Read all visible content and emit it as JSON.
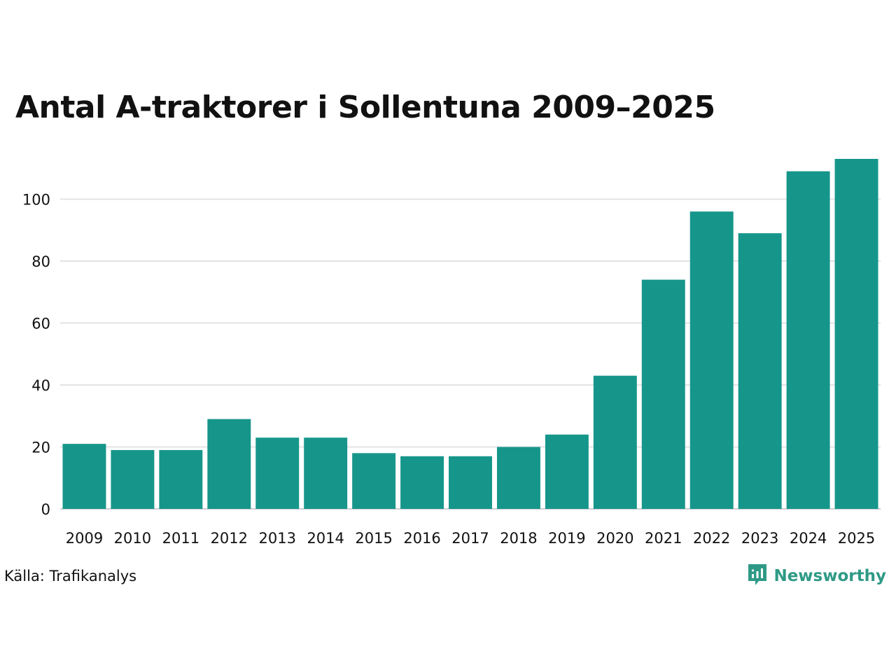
{
  "title": "Antal A-traktorer i Sollentuna 2009–2025",
  "source": "Källa: Trafikanalys",
  "brand": {
    "name": "Newsworthy",
    "icon": "newsworthy-logo-icon",
    "color": "#2e9a86"
  },
  "colors": {
    "bar": "#16968a",
    "grid": "#e3e3e6",
    "axis": "#cfcfd4"
  },
  "chart_data": {
    "type": "bar",
    "title": "Antal A-traktorer i Sollentuna 2009–2025",
    "xlabel": "",
    "ylabel": "",
    "categories": [
      "2009",
      "2010",
      "2011",
      "2012",
      "2013",
      "2014",
      "2015",
      "2016",
      "2017",
      "2018",
      "2019",
      "2020",
      "2021",
      "2022",
      "2023",
      "2024",
      "2025"
    ],
    "values": [
      21,
      19,
      19,
      29,
      23,
      23,
      18,
      17,
      17,
      20,
      24,
      43,
      74,
      96,
      89,
      109,
      113
    ],
    "ylim": [
      0,
      113
    ],
    "yticks": [
      0,
      20,
      40,
      60,
      80,
      100
    ],
    "grid": true,
    "legend": "none"
  }
}
